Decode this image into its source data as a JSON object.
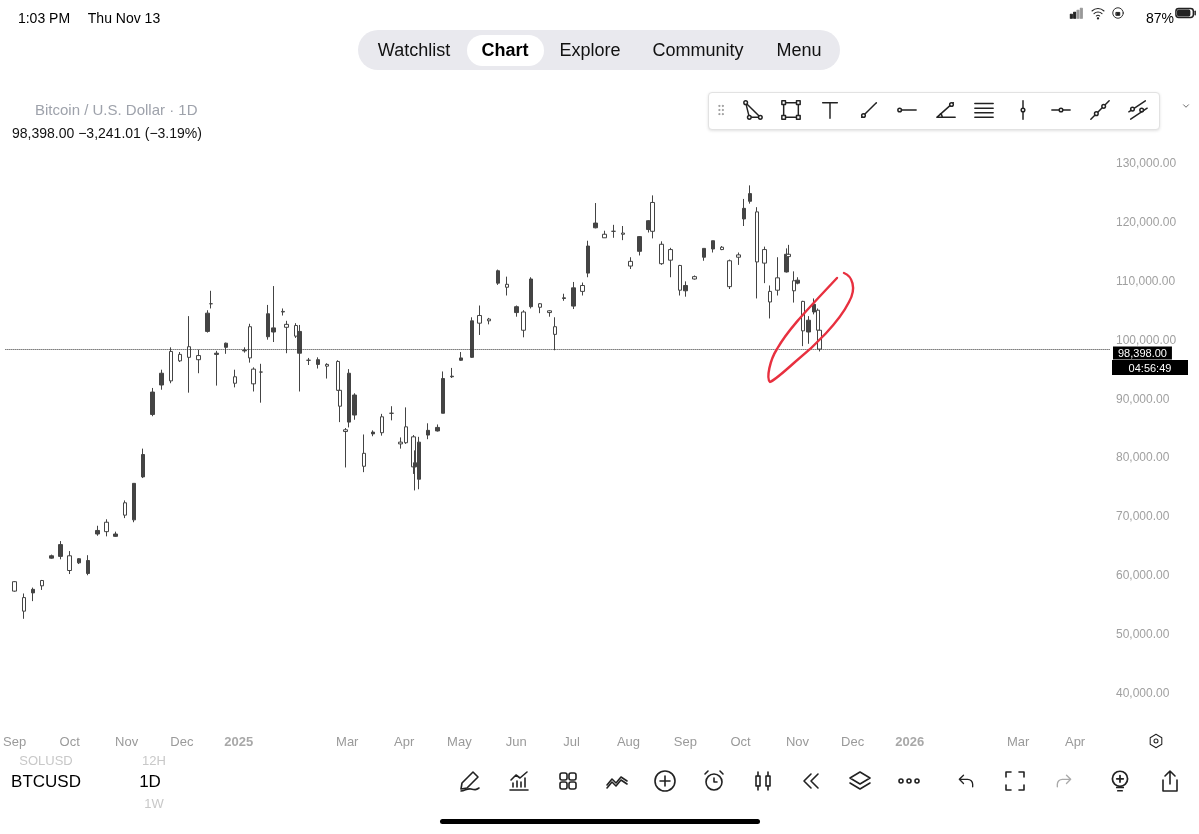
{
  "chart_data": {
    "type": "candlestick",
    "title": "Bitcoin / U.S. Dollar · 1D",
    "subtitle": "98,398.00 −3,241.01 (−3.19%)",
    "color": "#444444",
    "x": [
      "2024-09-01",
      "2024-09-06",
      "2024-09-11",
      "2024-09-16",
      "2024-09-21",
      "2024-09-26",
      "2024-10-01",
      "2024-10-06",
      "2024-10-11",
      "2024-10-16",
      "2024-10-21",
      "2024-10-26",
      "2024-10-31",
      "2024-11-05",
      "2024-11-10",
      "2024-11-15",
      "2024-11-20",
      "2024-11-25",
      "2024-11-30",
      "2024-12-05",
      "2024-12-10",
      "2024-12-15",
      "2024-12-17",
      "2024-12-20",
      "2024-12-25",
      "2024-12-30",
      "2025-01-04",
      "2025-01-07",
      "2025-01-09",
      "2025-01-13",
      "2025-01-17",
      "2025-01-20",
      "2025-01-25",
      "2025-01-27",
      "2025-02-01",
      "2025-02-03",
      "2025-02-08",
      "2025-02-13",
      "2025-02-18",
      "2025-02-24",
      "2025-02-25",
      "2025-02-28",
      "2025-03-02",
      "2025-03-05",
      "2025-03-10",
      "2025-03-15",
      "2025-03-20",
      "2025-03-25",
      "2025-03-30",
      "2025-04-02",
      "2025-04-06",
      "2025-04-07",
      "2025-04-09",
      "2025-04-14",
      "2025-04-19",
      "2025-04-22",
      "2025-04-27",
      "2025-05-02",
      "2025-05-08",
      "2025-05-12",
      "2025-05-17",
      "2025-05-22",
      "2025-05-27",
      "2025-06-01",
      "2025-06-05",
      "2025-06-09",
      "2025-06-14",
      "2025-06-19",
      "2025-06-22",
      "2025-06-27",
      "2025-07-02",
      "2025-07-07",
      "2025-07-10",
      "2025-07-14",
      "2025-07-19",
      "2025-07-24",
      "2025-07-29",
      "2025-08-02",
      "2025-08-07",
      "2025-08-12",
      "2025-08-14",
      "2025-08-19",
      "2025-08-24",
      "2025-08-29",
      "2025-09-01",
      "2025-09-06",
      "2025-09-11",
      "2025-09-16",
      "2025-09-21",
      "2025-09-25",
      "2025-09-30",
      "2025-10-03",
      "2025-10-06",
      "2025-10-10",
      "2025-10-14",
      "2025-10-17",
      "2025-10-21",
      "2025-10-26",
      "2025-10-27",
      "2025-10-30",
      "2025-11-01",
      "2025-11-04",
      "2025-11-07",
      "2025-11-10",
      "2025-11-12",
      "2025-11-13"
    ],
    "ohlc": [
      [
        58900,
        59000,
        57200,
        57300
      ],
      [
        56200,
        56900,
        52600,
        53900
      ],
      [
        57000,
        57900,
        55600,
        57600
      ],
      [
        59100,
        59200,
        57500,
        58200
      ],
      [
        62900,
        63500,
        62800,
        63300
      ],
      [
        63200,
        65800,
        62700,
        65200
      ],
      [
        63300,
        64100,
        60200,
        60800
      ],
      [
        62100,
        62900,
        61900,
        62800
      ],
      [
        60300,
        63400,
        60000,
        62500
      ],
      [
        67000,
        68400,
        66700,
        67600
      ],
      [
        69000,
        69500,
        66600,
        67400
      ],
      [
        66600,
        67400,
        66500,
        67000
      ],
      [
        72300,
        72700,
        69700,
        70200
      ],
      [
        69400,
        75600,
        69000,
        75600
      ],
      [
        76700,
        81500,
        76500,
        80500
      ],
      [
        87300,
        91800,
        87000,
        91100
      ],
      [
        92300,
        94900,
        91500,
        94300
      ],
      [
        98000,
        98700,
        92600,
        93000
      ],
      [
        97500,
        97900,
        96200,
        96400
      ],
      [
        98800,
        104000,
        91000,
        97000
      ],
      [
        97300,
        98300,
        94300,
        96600
      ],
      [
        101400,
        105000,
        101200,
        104500
      ],
      [
        106100,
        108300,
        105300,
        106100
      ],
      [
        97500,
        98100,
        92200,
        97700
      ],
      [
        98700,
        99500,
        97600,
        99400
      ],
      [
        93700,
        94900,
        91900,
        92600
      ],
      [
        98100,
        98700,
        97800,
        98200
      ],
      [
        102200,
        102700,
        96100,
        96900
      ],
      [
        95000,
        95300,
        91200,
        92500
      ],
      [
        94500,
        95900,
        89300,
        94500
      ],
      [
        100500,
        105900,
        100000,
        104400
      ],
      [
        101300,
        109100,
        99600,
        102000
      ],
      [
        104800,
        105300,
        104100,
        104700
      ],
      [
        102600,
        103200,
        97700,
        102100
      ],
      [
        102400,
        102800,
        100300,
        100600
      ],
      [
        97700,
        102500,
        91200,
        101400
      ],
      [
        96500,
        96900,
        95700,
        96500
      ],
      [
        95800,
        97000,
        95100,
        96600
      ],
      [
        95800,
        96000,
        93400,
        95500
      ],
      [
        96300,
        96500,
        91300,
        91400
      ],
      [
        91400,
        92500,
        86000,
        88700
      ],
      [
        84700,
        85000,
        78300,
        84400
      ],
      [
        86000,
        95000,
        85100,
        94300
      ],
      [
        87200,
        90900,
        86400,
        90600
      ],
      [
        80700,
        83900,
        77500,
        78500
      ],
      [
        84000,
        84600,
        83600,
        84300
      ],
      [
        86900,
        87400,
        83700,
        84200
      ],
      [
        87500,
        88700,
        86300,
        87500
      ],
      [
        82600,
        83400,
        81500,
        82300
      ],
      [
        85200,
        88500,
        82300,
        82500
      ],
      [
        83500,
        83800,
        77200,
        78400
      ],
      [
        78400,
        81200,
        74400,
        79100
      ],
      [
        76300,
        83500,
        74600,
        82600
      ],
      [
        83800,
        85800,
        83100,
        84600
      ],
      [
        84500,
        85600,
        84400,
        85100
      ],
      [
        87500,
        94600,
        87500,
        93400
      ],
      [
        93700,
        95200,
        93500,
        93800
      ],
      [
        96500,
        97900,
        96400,
        96900
      ],
      [
        97000,
        103800,
        96900,
        103200
      ],
      [
        104100,
        105800,
        100800,
        102800
      ],
      [
        103500,
        103700,
        102600,
        103200
      ],
      [
        109600,
        111900,
        109300,
        111700
      ],
      [
        109400,
        110700,
        107500,
        108900
      ],
      [
        104600,
        105800,
        103900,
        105600
      ],
      [
        104700,
        105000,
        100400,
        101600
      ],
      [
        105600,
        110600,
        105300,
        110300
      ],
      [
        106100,
        106200,
        104500,
        105500
      ],
      [
        104900,
        105000,
        103900,
        104600
      ],
      [
        102200,
        103800,
        98200,
        100900
      ],
      [
        107000,
        107800,
        106600,
        107100
      ],
      [
        105700,
        109800,
        105200,
        108800
      ],
      [
        109200,
        109700,
        107500,
        108200
      ],
      [
        111300,
        116800,
        110600,
        115900
      ],
      [
        119000,
        123200,
        118900,
        119800
      ],
      [
        117900,
        118500,
        117300,
        117300
      ],
      [
        118400,
        119500,
        117300,
        118400
      ],
      [
        118100,
        119300,
        116900,
        117900
      ],
      [
        113300,
        114000,
        112000,
        112500
      ],
      [
        115000,
        117600,
        114300,
        117500
      ],
      [
        118700,
        120300,
        118200,
        120200
      ],
      [
        123300,
        124500,
        117200,
        118400
      ],
      [
        116200,
        116700,
        112700,
        112900
      ],
      [
        115300,
        115600,
        110600,
        113500
      ],
      [
        112600,
        112700,
        107500,
        108400
      ],
      [
        108300,
        109900,
        107300,
        109200
      ],
      [
        110700,
        110900,
        110200,
        110300
      ],
      [
        114000,
        115500,
        113400,
        115500
      ],
      [
        115400,
        116800,
        114800,
        116800
      ],
      [
        115700,
        115900,
        115200,
        115300
      ],
      [
        113400,
        113600,
        108600,
        109000
      ],
      [
        114400,
        114800,
        112700,
        114000
      ],
      [
        120500,
        123900,
        119300,
        122300
      ],
      [
        123500,
        126200,
        123100,
        124800
      ],
      [
        121700,
        122500,
        107000,
        113200
      ],
      [
        115300,
        115800,
        109600,
        113000
      ],
      [
        108200,
        109200,
        103600,
        106400
      ],
      [
        110500,
        114000,
        107500,
        108400
      ],
      [
        111500,
        115500,
        111400,
        114500
      ],
      [
        114500,
        116100,
        113800,
        114100
      ],
      [
        110000,
        111600,
        106300,
        108300
      ],
      [
        109600,
        110600,
        109400,
        110100
      ],
      [
        106500,
        106600,
        98900,
        101500
      ],
      [
        101300,
        104000,
        99300,
        103300
      ],
      [
        104700,
        107000,
        104300,
        106000
      ],
      [
        105000,
        105300,
        100800,
        101600
      ],
      [
        101600,
        104000,
        98000,
        98398
      ]
    ],
    "xlim": [
      "2024-08-27",
      "2026-04-20"
    ],
    "xticks": [
      {
        "value": "2024-09-01",
        "label": "Sep"
      },
      {
        "value": "2024-10-01",
        "label": "Oct"
      },
      {
        "value": "2024-11-01",
        "label": "Nov"
      },
      {
        "value": "2024-12-01",
        "label": "Dec"
      },
      {
        "value": "2025-01-01",
        "label": "2025"
      },
      {
        "value": "2025-03-01",
        "label": "Mar"
      },
      {
        "value": "2025-04-01",
        "label": "Apr"
      },
      {
        "value": "2025-05-01",
        "label": "May"
      },
      {
        "value": "2025-06-01",
        "label": "Jun"
      },
      {
        "value": "2025-07-01",
        "label": "Jul"
      },
      {
        "value": "2025-08-01",
        "label": "Aug"
      },
      {
        "value": "2025-09-01",
        "label": "Sep"
      },
      {
        "value": "2025-10-01",
        "label": "Oct"
      },
      {
        "value": "2025-11-01",
        "label": "Nov"
      },
      {
        "value": "2025-12-01",
        "label": "Dec"
      },
      {
        "value": "2026-01-01",
        "label": "2026"
      },
      {
        "value": "2026-03-01",
        "label": "Mar"
      },
      {
        "value": "2026-04-01",
        "label": "Apr"
      }
    ],
    "ylim": [
      40000,
      130000
    ],
    "yticks": [
      {
        "value": 40000,
        "label": "40,000.00"
      },
      {
        "value": 50000,
        "label": "50,000.00"
      },
      {
        "value": 60000,
        "label": "60,000.00"
      },
      {
        "value": 70000,
        "label": "70,000.00"
      },
      {
        "value": 80000,
        "label": "80,000.00"
      },
      {
        "value": 90000,
        "label": "90,000.00"
      },
      {
        "value": 100000,
        "label": "100,000.00"
      },
      {
        "value": 110000,
        "label": "110,000.00"
      },
      {
        "value": 120000,
        "label": "120,000.00"
      },
      {
        "value": 130000,
        "label": "130,000.00"
      }
    ],
    "ref_lines": [
      {
        "axis": "y",
        "value": 98398,
        "label": "98,398.00",
        "color": "#333333",
        "line_style": "dotted"
      }
    ],
    "annotations": [
      "1:03 PM",
      "Thu Nov 13",
      "87%",
      "Watchlist",
      "Chart",
      "Explore",
      "Community",
      "Menu",
      "04:56:49",
      "SOLUSD",
      "12H",
      "BTCUSD",
      "1D",
      "1W"
    ]
  }
}
